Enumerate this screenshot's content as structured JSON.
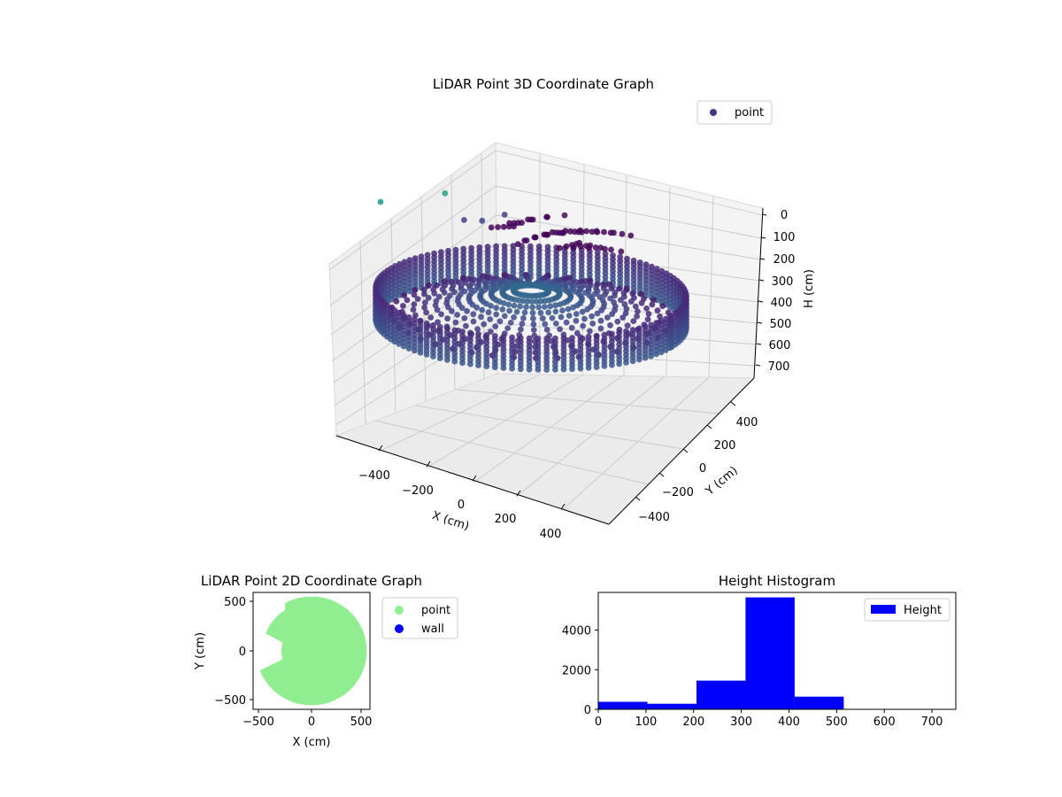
{
  "chart_data": [
    {
      "type": "scatter",
      "title": "LiDAR Point 3D Coordinate Graph",
      "xlabel": "X (cm)",
      "ylabel": "Y (cm)",
      "zlabel": "H (cm)",
      "xticks": [
        "−400",
        "−200",
        "0",
        "200",
        "400"
      ],
      "yticks": [
        "400",
        "200",
        "0",
        "−200",
        "−400"
      ],
      "zticks": [
        "0",
        "100",
        "200",
        "300",
        "400",
        "500",
        "600",
        "700"
      ],
      "xlim": [
        -560,
        560
      ],
      "ylim": [
        -560,
        560
      ],
      "zlim": [
        0,
        750
      ],
      "z_inverted": true,
      "grid": true,
      "legend": {
        "position": "top-right",
        "entries": [
          {
            "label": "point",
            "color": "#453781"
          }
        ]
      },
      "colormap": "viridis",
      "series": [
        {
          "name": "point",
          "shape": "ring",
          "radius": 540,
          "h_range": [
            320,
            520
          ],
          "note_colors": [
            "#46327e",
            "#3b528b"
          ]
        }
      ]
    },
    {
      "type": "scatter",
      "title": "LiDAR Point 2D Coordinate Graph",
      "xlabel": "X (cm)",
      "ylabel": "Y (cm)",
      "xticks": [
        "−500",
        "0",
        "500"
      ],
      "yticks": [
        "500",
        "0",
        "−500"
      ],
      "xlim": [
        -580,
        580
      ],
      "ylim": [
        -590,
        590
      ],
      "legend": {
        "position": "outside-right",
        "entries": [
          {
            "label": "point",
            "color": "#90ee90"
          },
          {
            "label": "wall",
            "color": "#0000ff"
          }
        ]
      },
      "series": [
        {
          "name": "point",
          "color": "#90ee90",
          "radius": 520,
          "center": [
            0,
            0
          ]
        },
        {
          "name": "wall",
          "color": "#0000ff"
        }
      ]
    },
    {
      "type": "bar",
      "title": "Height Histogram",
      "xticks": [
        "0",
        "100",
        "200",
        "300",
        "400",
        "500",
        "600",
        "700"
      ],
      "yticks": [
        "0",
        "2000",
        "4000"
      ],
      "xlim": [
        0,
        750
      ],
      "ylim": [
        0,
        5900
      ],
      "legend": {
        "position": "top-right",
        "entries": [
          {
            "label": "Height",
            "color": "#0000ff"
          }
        ]
      },
      "bins": [
        {
          "x0": 0,
          "x1": 103,
          "count": 380
        },
        {
          "x0": 103,
          "x1": 206,
          "count": 280
        },
        {
          "x0": 206,
          "x1": 309,
          "count": 1450
        },
        {
          "x0": 309,
          "x1": 412,
          "count": 5650
        },
        {
          "x0": 412,
          "x1": 515,
          "count": 640
        },
        {
          "x0": 515,
          "x1": 618,
          "count": 10
        },
        {
          "x0": 618,
          "x1": 721,
          "count": 5
        }
      ],
      "color": "#0000ff"
    }
  ]
}
